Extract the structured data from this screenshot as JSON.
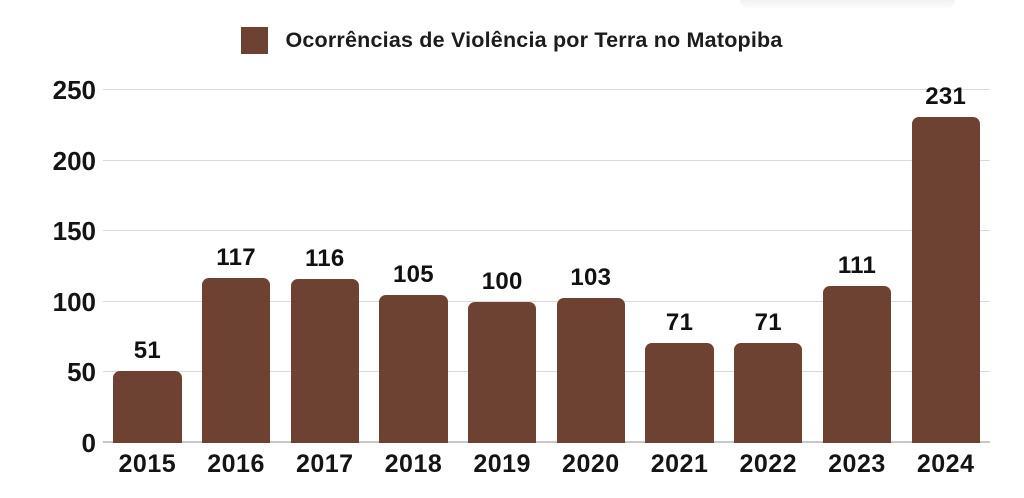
{
  "page": {
    "background_color": "#ffffff",
    "text_color": "#141414",
    "gridline_color": "#dadada",
    "baseline_color": "#c7c7c7"
  },
  "decor": {
    "topright_fragment_color": "#e9e9e9"
  },
  "chart_data": {
    "type": "bar",
    "title": "Ocorrências de Violência por Terra no Matopiba",
    "legend_position": "top",
    "bar_color": "#6E4233",
    "categories": [
      "2015",
      "2016",
      "2017",
      "2018",
      "2019",
      "2020",
      "2021",
      "2022",
      "2023",
      "2024"
    ],
    "values": [
      51,
      117,
      116,
      105,
      100,
      103,
      71,
      71,
      111,
      231
    ],
    "value_labels_shown": true,
    "xlabel": "",
    "ylabel": "",
    "ylim": [
      0,
      250
    ],
    "yticks": [
      0,
      50,
      100,
      150,
      200,
      250
    ],
    "grid": true
  }
}
